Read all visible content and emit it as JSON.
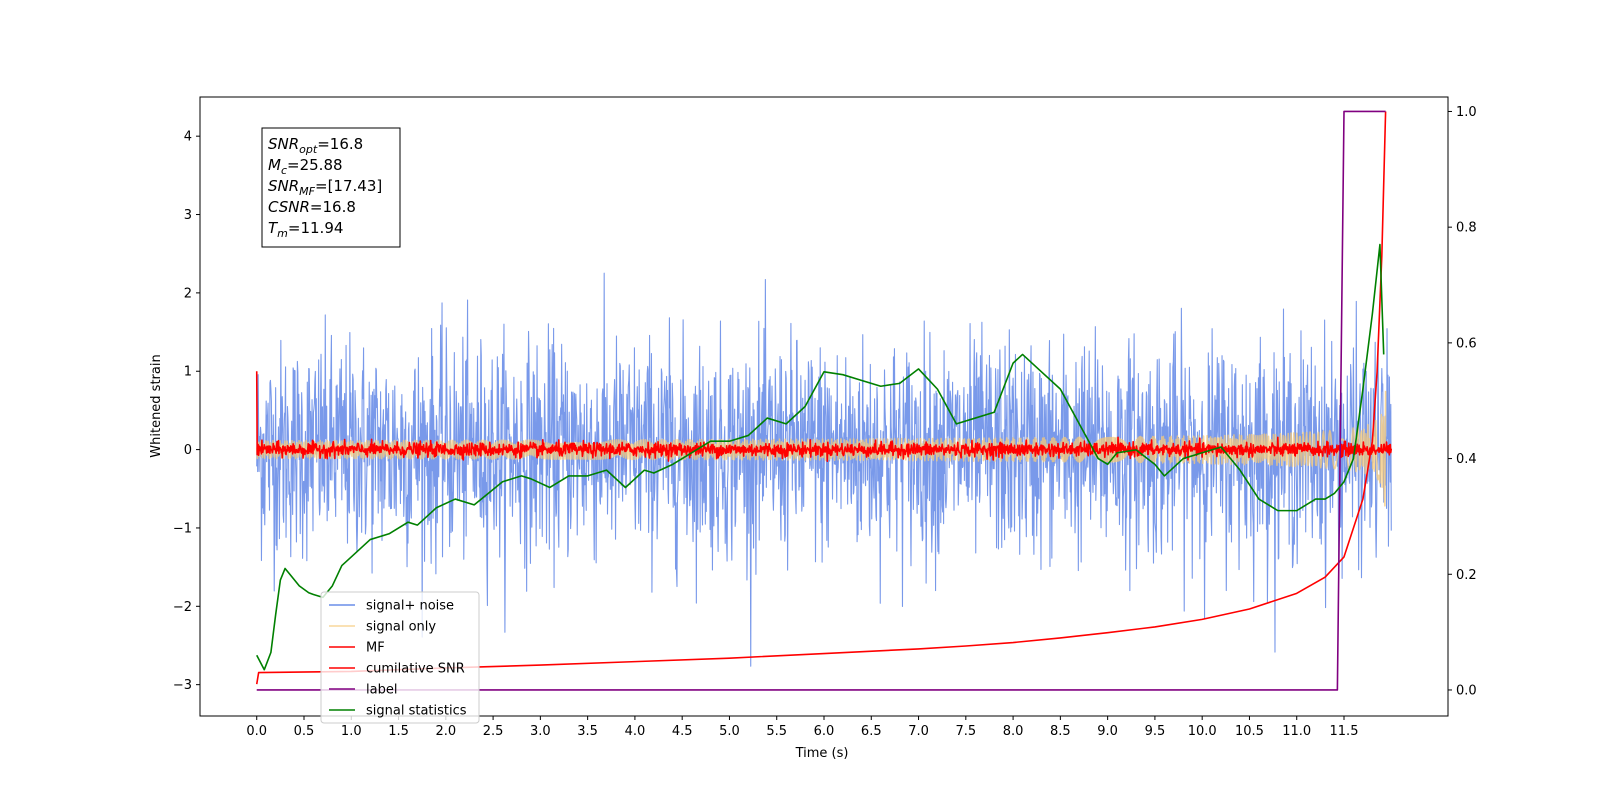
{
  "chart_data": {
    "type": "line",
    "xlabel": "Time (s)",
    "ylabel": "Whitened strain",
    "xlim": [
      -0.6,
      12.6
    ],
    "ylim": [
      -3.4,
      4.5
    ],
    "y2lim": [
      -0.045,
      1.025
    ],
    "xticks": [
      0.0,
      0.5,
      1.0,
      1.5,
      2.0,
      2.5,
      3.0,
      3.5,
      4.0,
      4.5,
      5.0,
      5.5,
      6.0,
      6.5,
      7.0,
      7.5,
      8.0,
      8.5,
      9.0,
      9.5,
      10.0,
      10.5,
      11.0,
      11.5
    ],
    "xtick_labels": [
      "0.0",
      "0.5",
      "1.0",
      "1.5",
      "2.0",
      "2.5",
      "3.0",
      "3.5",
      "4.0",
      "4.5",
      "5.0",
      "5.5",
      "6.0",
      "6.5",
      "7.0",
      "7.5",
      "8.0",
      "8.5",
      "9.0",
      "9.5",
      "10.0",
      "10.5",
      "11.0",
      "11.5"
    ],
    "yticks": [
      -3,
      -2,
      -1,
      0,
      1,
      2,
      3,
      4
    ],
    "ytick_labels": [
      "−3",
      "−2",
      "−1",
      "0",
      "1",
      "2",
      "3",
      "4"
    ],
    "y2ticks": [
      0.0,
      0.2,
      0.4,
      0.6,
      0.8,
      1.0
    ],
    "y2tick_labels": [
      "0.0",
      "0.2",
      "0.4",
      "0.6",
      "0.8",
      "1.0"
    ],
    "legend_position": "lower-left",
    "grid": false,
    "annotation": {
      "lines": [
        {
          "base": "SNR",
          "sub": "opt",
          "value": "=16.8"
        },
        {
          "base": "M",
          "sub": "c",
          "value": "=25.88"
        },
        {
          "base": "SNR",
          "sub": "MF",
          "value": "=[17.43]"
        },
        {
          "base": "CSNR",
          "sub": "",
          "value": "=16.8"
        },
        {
          "base": "T",
          "sub": "m",
          "value": "=11.94"
        }
      ]
    },
    "series": [
      {
        "name": "signal+ noise",
        "color": "#6a8ee8",
        "axis": "left",
        "kind": "noise",
        "amplitude": 1.25,
        "t_start": 0.0,
        "t_end": 12.0
      },
      {
        "name": "signal only",
        "color": "#f6c97a",
        "axis": "left",
        "kind": "chirp",
        "amplitude": 2.4,
        "t_start": 0.0,
        "t_end": 11.94
      },
      {
        "name": "MF",
        "color": "#ff0000",
        "axis": "left",
        "kind": "noise",
        "amplitude": 0.08,
        "start_value": 1.0,
        "t_start": 0.0,
        "t_end": 12.0
      },
      {
        "name": "cumilative SNR",
        "color": "#ff0000",
        "axis": "right",
        "x": [
          0.0,
          0.02,
          1.0,
          2.0,
          3.0,
          4.0,
          5.0,
          6.0,
          7.0,
          7.5,
          8.0,
          8.5,
          9.0,
          9.5,
          10.0,
          10.5,
          11.0,
          11.3,
          11.5,
          11.7,
          11.8,
          11.85,
          11.9,
          11.94
        ],
        "y": [
          0.01,
          0.03,
          0.032,
          0.038,
          0.043,
          0.049,
          0.055,
          0.063,
          0.071,
          0.076,
          0.082,
          0.09,
          0.099,
          0.109,
          0.122,
          0.14,
          0.167,
          0.195,
          0.23,
          0.33,
          0.43,
          0.55,
          0.75,
          1.0
        ]
      },
      {
        "name": "label",
        "color": "#800080",
        "axis": "right",
        "x": [
          0.0,
          11.43,
          11.5,
          11.94
        ],
        "y": [
          0.0,
          0.0,
          1.0,
          1.0
        ]
      },
      {
        "name": "signal statistics",
        "color": "#008000",
        "axis": "right",
        "x": [
          0.0,
          0.08,
          0.15,
          0.2,
          0.25,
          0.3,
          0.35,
          0.45,
          0.55,
          0.6,
          0.7,
          0.8,
          0.9,
          1.0,
          1.2,
          1.4,
          1.6,
          1.7,
          1.8,
          1.9,
          2.1,
          2.3,
          2.6,
          2.8,
          2.9,
          3.1,
          3.3,
          3.5,
          3.7,
          3.9,
          4.1,
          4.2,
          4.4,
          4.6,
          4.8,
          5.0,
          5.2,
          5.4,
          5.6,
          5.8,
          6.0,
          6.2,
          6.4,
          6.6,
          6.8,
          7.0,
          7.2,
          7.4,
          7.6,
          7.8,
          8.0,
          8.1,
          8.3,
          8.5,
          8.7,
          8.9,
          9.0,
          9.1,
          9.3,
          9.5,
          9.6,
          9.8,
          10.0,
          10.2,
          10.4,
          10.6,
          10.8,
          11.0,
          11.2,
          11.3,
          11.4,
          11.5,
          11.6,
          11.7,
          11.8,
          11.88,
          11.92
        ],
        "y": [
          0.06,
          0.035,
          0.065,
          0.13,
          0.19,
          0.21,
          0.2,
          0.18,
          0.168,
          0.165,
          0.16,
          0.18,
          0.215,
          0.23,
          0.26,
          0.27,
          0.29,
          0.285,
          0.3,
          0.315,
          0.33,
          0.32,
          0.36,
          0.37,
          0.365,
          0.35,
          0.37,
          0.37,
          0.38,
          0.35,
          0.38,
          0.375,
          0.39,
          0.41,
          0.43,
          0.43,
          0.44,
          0.47,
          0.46,
          0.49,
          0.55,
          0.545,
          0.535,
          0.525,
          0.53,
          0.555,
          0.52,
          0.46,
          0.47,
          0.48,
          0.565,
          0.58,
          0.55,
          0.52,
          0.46,
          0.4,
          0.39,
          0.41,
          0.415,
          0.39,
          0.37,
          0.4,
          0.41,
          0.42,
          0.38,
          0.33,
          0.31,
          0.31,
          0.33,
          0.33,
          0.34,
          0.36,
          0.4,
          0.52,
          0.65,
          0.77,
          0.58
        ]
      }
    ]
  }
}
